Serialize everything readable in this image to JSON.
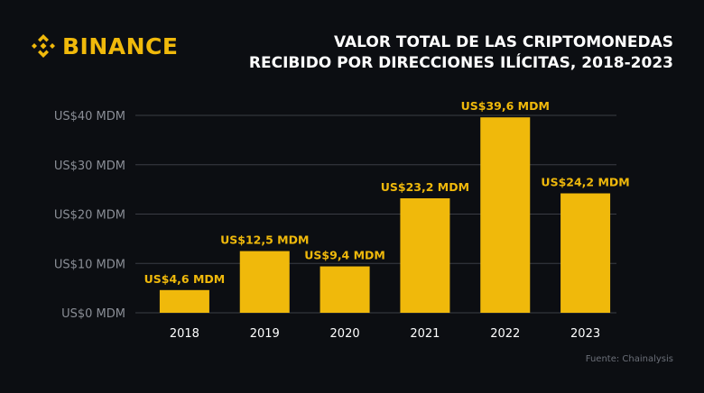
{
  "brand": {
    "name": "BINANCE",
    "color": "#f0b90b"
  },
  "chart_data": {
    "type": "bar",
    "title": [
      "VALOR TOTAL DE LAS CRIPTOMONEDAS",
      "RECIBIDO POR DIRECCIONES ILÍCITAS, 2018-2023"
    ],
    "categories": [
      "2018",
      "2019",
      "2020",
      "2021",
      "2022",
      "2023"
    ],
    "values": [
      4.6,
      12.5,
      9.4,
      23.2,
      39.6,
      24.2
    ],
    "data_labels": [
      "US$4,6 MDM",
      "US$12,5 MDM",
      "US$9,4 MDM",
      "US$23,2 MDM",
      "US$39,6 MDM",
      "US$24,2 MDM"
    ],
    "yticks": [
      0,
      10,
      20,
      30,
      40
    ],
    "ytick_labels": [
      "US$0 MDM",
      "US$10 MDM",
      "US$20 MDM",
      "US$30 MDM",
      "US$40 MDM"
    ],
    "ylim": [
      0,
      40
    ],
    "xlabel": "",
    "ylabel": "",
    "grid": true,
    "bar_color": "#f0b90b"
  },
  "source": "Fuente: Chainalysis"
}
